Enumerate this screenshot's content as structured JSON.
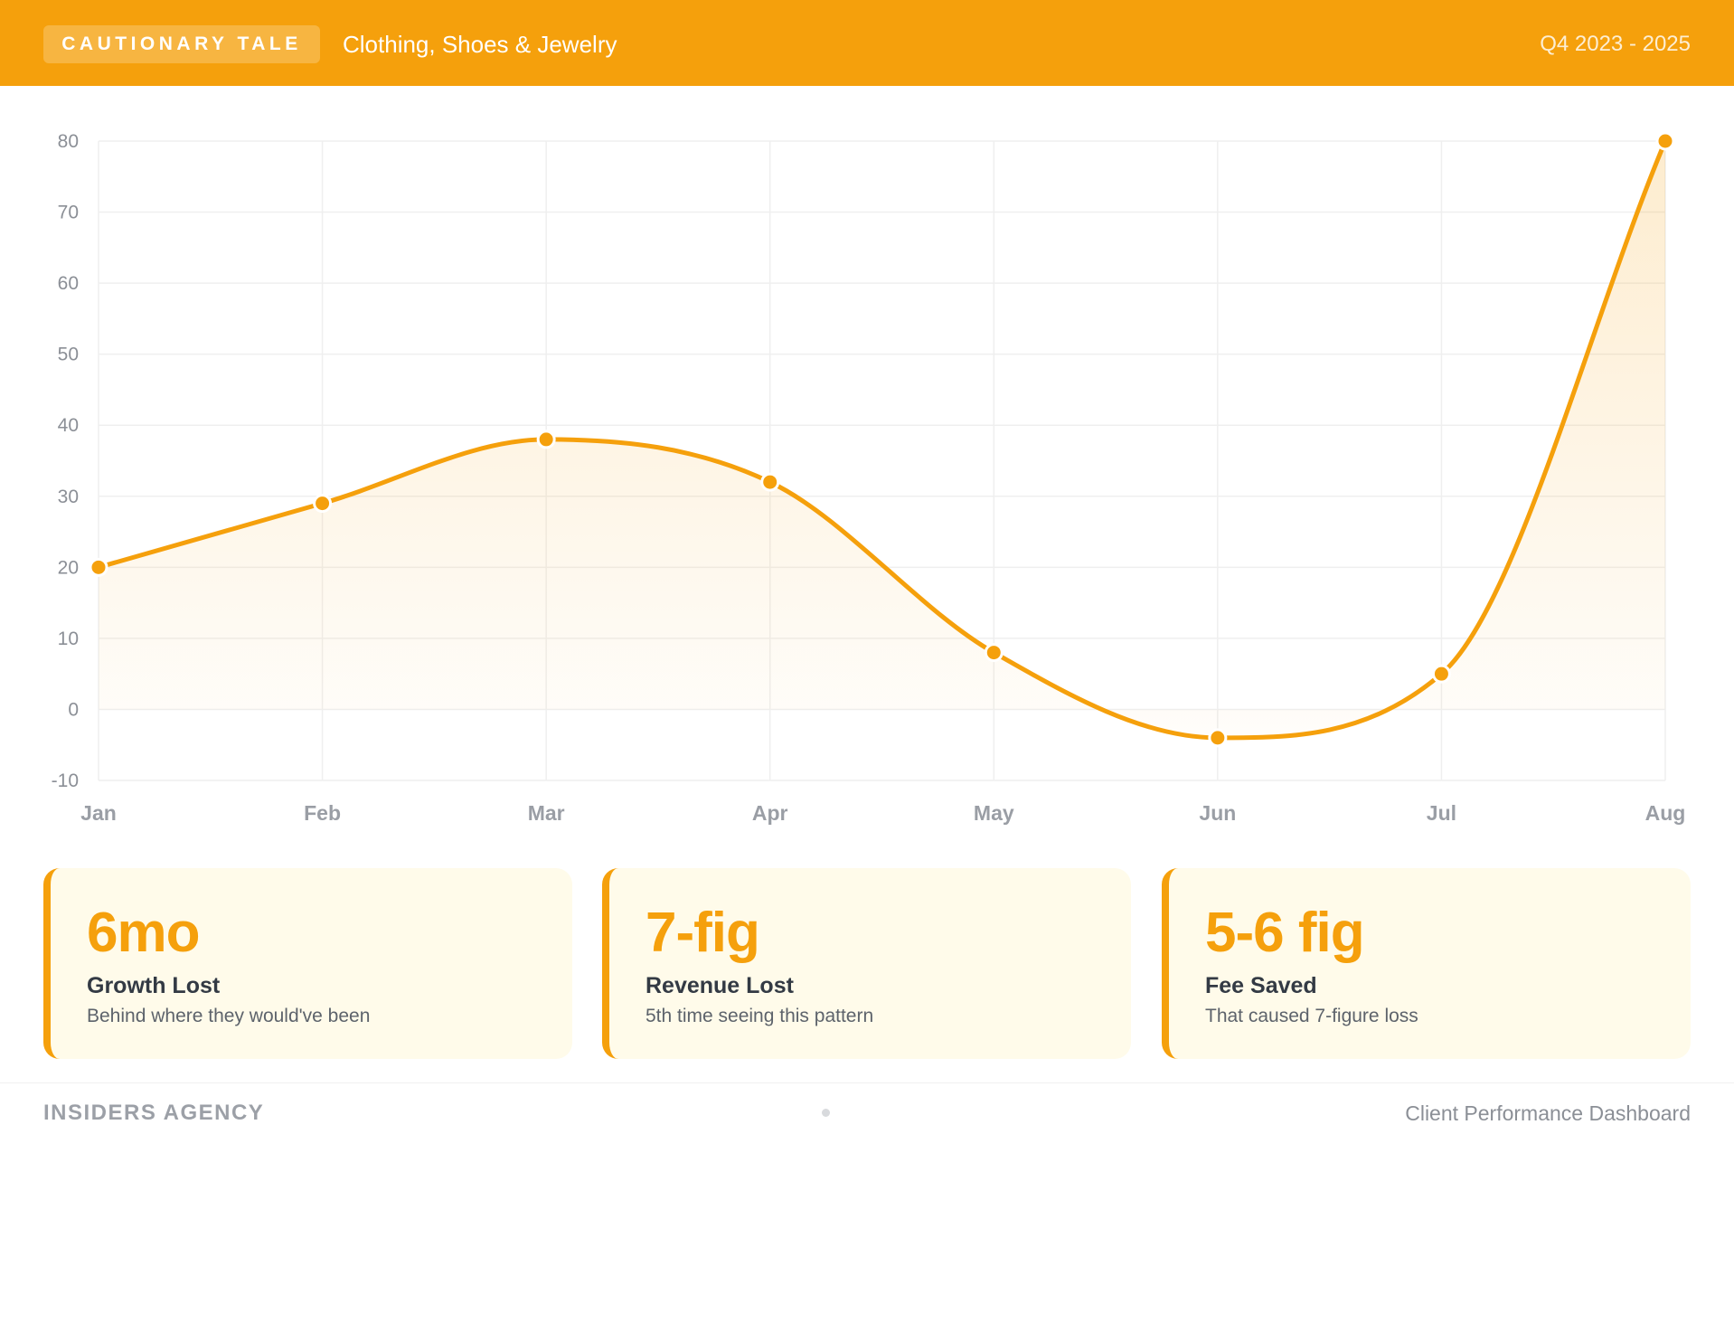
{
  "header": {
    "badge": "CAUTIONARY TALE",
    "title": "Clothing, Shoes & Jewelry",
    "period": "Q4 2023 - 2025"
  },
  "chart_data": {
    "type": "area",
    "categories": [
      "Jan",
      "Feb",
      "Mar",
      "Apr",
      "May",
      "Jun",
      "Jul",
      "Aug"
    ],
    "values": [
      20,
      29,
      38,
      32,
      8,
      -4,
      5,
      80
    ],
    "ylim": [
      -10,
      80
    ],
    "yticks": [
      80,
      70,
      60,
      50,
      40,
      30,
      20,
      10,
      0,
      -10
    ],
    "grid": true,
    "title": "",
    "xlabel": "",
    "ylabel": "",
    "line_color": "#f5a00c"
  },
  "cards": [
    {
      "value": "6mo",
      "label": "Growth Lost",
      "desc": "Behind where they would've been"
    },
    {
      "value": "7-fig",
      "label": "Revenue Lost",
      "desc": "5th time seeing this pattern"
    },
    {
      "value": "5-6 fig",
      "label": "Fee Saved",
      "desc": "That caused 7-figure loss"
    }
  ],
  "footer": {
    "brand": "INSIDERS AGENCY",
    "right": "Client Performance Dashboard"
  },
  "colors": {
    "accent": "#f5a00c",
    "card_bg": "#fffbea"
  }
}
